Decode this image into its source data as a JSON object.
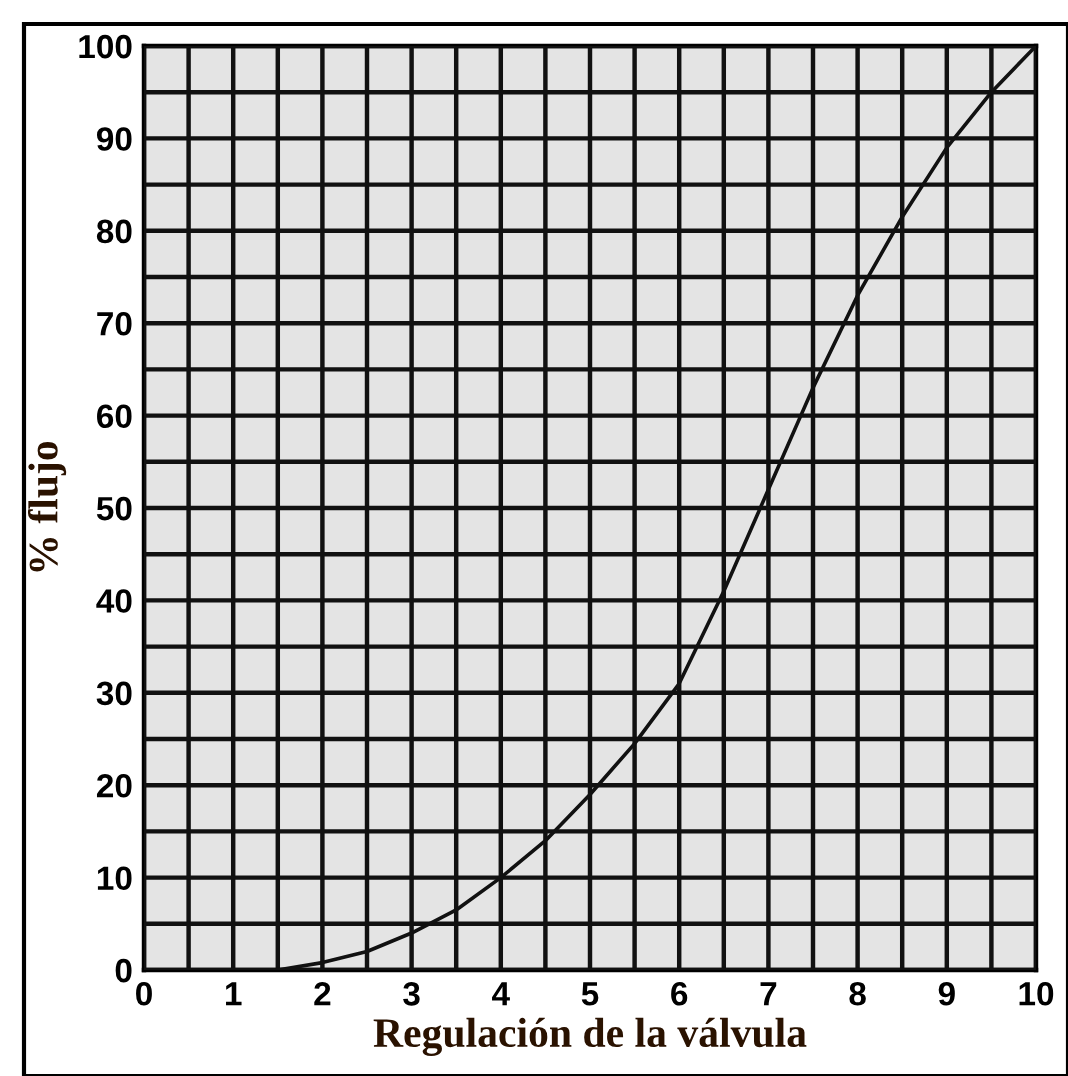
{
  "chart_data": {
    "type": "line",
    "xlabel": "Regulación de la válvula",
    "ylabel": "% flujo",
    "series": [
      {
        "color": "#111111",
        "x": [
          1.5,
          2,
          2.5,
          3,
          3.5,
          4,
          4.5,
          5,
          5.5,
          6,
          6.5,
          7,
          7.5,
          8,
          8.5,
          9,
          9.5,
          10
        ],
        "values": [
          0,
          0.8,
          2,
          4,
          6.5,
          10,
          14,
          19,
          24.5,
          31,
          41,
          52,
          63,
          73,
          81.5,
          89,
          95,
          100
        ]
      }
    ],
    "xlim": [
      0,
      10
    ],
    "ylim": [
      0,
      100
    ],
    "xticks": [
      0,
      {
        "value": 0.5,
        "label": null
      },
      1,
      {
        "value": 1.5,
        "label": null
      },
      2,
      {
        "value": 2.5,
        "label": null
      },
      3,
      {
        "value": 3.5,
        "label": null
      },
      4,
      {
        "value": 4.5,
        "label": null
      },
      5,
      {
        "value": 5.5,
        "label": null
      },
      6,
      {
        "value": 6.5,
        "label": null
      },
      7,
      {
        "value": 7.5,
        "label": null
      },
      8,
      {
        "value": 8.5,
        "label": null
      },
      9,
      {
        "value": 9.5,
        "label": null
      },
      10
    ],
    "yticks": [
      0,
      {
        "value": 5,
        "label": null
      },
      10,
      {
        "value": 15,
        "label": null
      },
      20,
      {
        "value": 25,
        "label": null
      },
      30,
      {
        "value": 35,
        "label": null
      },
      40,
      {
        "value": 45,
        "label": null
      },
      50,
      {
        "value": 55,
        "label": null
      },
      60,
      {
        "value": 65,
        "label": null
      },
      70,
      {
        "value": 75,
        "label": null
      },
      80,
      {
        "value": 85,
        "label": null
      },
      90,
      {
        "value": 95,
        "label": null
      },
      100
    ],
    "grid": true,
    "marker": "none",
    "line_style": "solid"
  }
}
